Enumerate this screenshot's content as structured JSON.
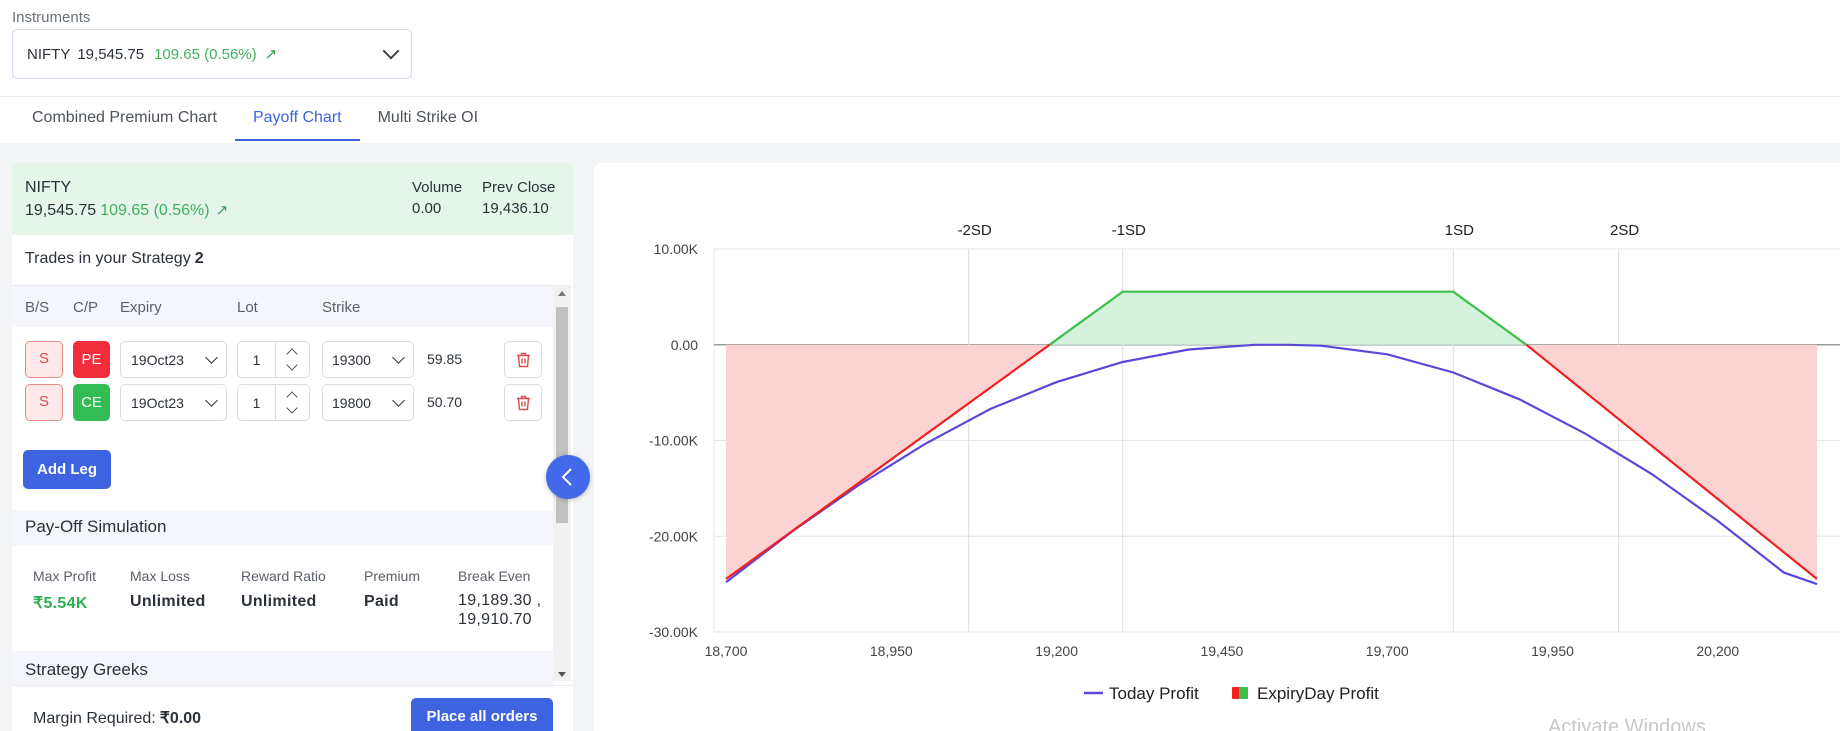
{
  "instruments": {
    "label": "Instruments",
    "symbol": "NIFTY",
    "price": "19,545.75",
    "change": "109.65 (0.56%)",
    "arrow": "↗"
  },
  "tabs": [
    {
      "label": "Combined Premium Chart",
      "active": false
    },
    {
      "label": "Payoff Chart",
      "active": true
    },
    {
      "label": "Multi Strike OI",
      "active": false
    }
  ],
  "summary": {
    "name": "NIFTY",
    "price": "19,545.75",
    "change": "109.65 (0.56%)",
    "arrow": "↗",
    "volume_label": "Volume",
    "volume": "0.00",
    "prev_close_label": "Prev Close",
    "prev_close": "19,436.10"
  },
  "strategy": {
    "trades_label": "Trades in your Strategy",
    "trades_count": "2",
    "columns": {
      "bs": "B/S",
      "cp": "C/P",
      "expiry": "Expiry",
      "lot": "Lot",
      "strike": "Strike"
    },
    "legs": [
      {
        "bs": "S",
        "cp": "PE",
        "expiry": "19Oct23",
        "lot": "1",
        "strike": "19300",
        "premium": "59.85"
      },
      {
        "bs": "S",
        "cp": "CE",
        "expiry": "19Oct23",
        "lot": "1",
        "strike": "19800",
        "premium": "50.70"
      }
    ],
    "add_leg_label": "Add Leg"
  },
  "simulation": {
    "title": "Pay-Off Simulation",
    "max_profit_label": "Max Profit",
    "max_profit": "₹5.54K",
    "max_loss_label": "Max Loss",
    "max_loss": "Unlimited",
    "reward_ratio_label": "Reward Ratio",
    "reward_ratio": "Unlimited",
    "premium_label": "Premium",
    "premium": "Paid",
    "break_even_label": "Break Even",
    "break_even_1": "19,189.30 ,",
    "break_even_2": "19,910.70"
  },
  "greeks": {
    "title": "Strategy Greeks"
  },
  "margin": {
    "label": "Margin Required:",
    "value": "₹0.00"
  },
  "place_orders_label": "Place all orders",
  "watermark": "Activate Windows",
  "colors": {
    "accent": "#3d63e0",
    "positive": "#33bb55",
    "negative": "#f02d3a",
    "today_line": "#5a48d8",
    "expiry_profit_line": "#3cc04a",
    "expiry_loss_line": "#f02020",
    "profit_fill": "#d5f2dc",
    "loss_fill": "#fbd3d3"
  },
  "chart_data": {
    "type": "line",
    "x_ticks": [
      "18,700",
      "18,950",
      "19,200",
      "19,450",
      "19,700",
      "19,950",
      "20,200"
    ],
    "y_ticks": [
      "10.00K",
      "0.00",
      "-10.00K",
      "-20.00K",
      "-30.00K"
    ],
    "xlim": [
      18700,
      20350
    ],
    "ylim": [
      -30000,
      10000
    ],
    "sd_lines": [
      {
        "label": "-2SD",
        "x": 19067
      },
      {
        "label": "-1SD",
        "x": 19300
      },
      {
        "label": "1SD",
        "x": 19800
      },
      {
        "label": "2SD",
        "x": 20050
      }
    ],
    "series": [
      {
        "name": "Today Profit",
        "x": [
          18700,
          18800,
          18900,
          19000,
          19100,
          19200,
          19300,
          19400,
          19500,
          19550,
          19600,
          19700,
          19800,
          19900,
          20000,
          20100,
          20200,
          20300,
          20350
        ],
        "y": [
          -24800,
          -19500,
          -14700,
          -10400,
          -6700,
          -3900,
          -1800,
          -500,
          0,
          0,
          -100,
          -1000,
          -2900,
          -5700,
          -9300,
          -13500,
          -18400,
          -23800,
          -25000
        ]
      },
      {
        "name": "ExpiryDay Profit",
        "x": [
          18700,
          19300,
          19800,
          20350
        ],
        "y": [
          -24460,
          5540,
          5540,
          -24460
        ]
      }
    ]
  }
}
